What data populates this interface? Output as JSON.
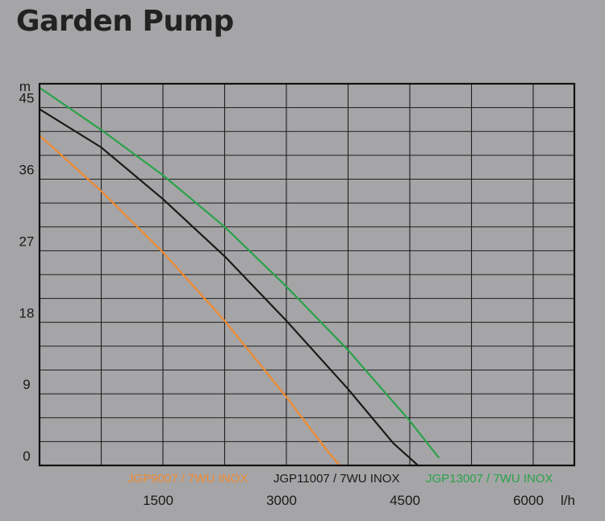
{
  "page": {
    "title": "Garden Pump"
  },
  "chart_data": {
    "type": "line",
    "title": "Garden Pump",
    "xlabel": "l/h",
    "ylabel": "m",
    "xlim": [
      0,
      6500
    ],
    "ylim": [
      0,
      48
    ],
    "x_major_ticks": [
      1500,
      3000,
      4500,
      6000
    ],
    "x_tick_labels": [
      "1500",
      "3000",
      "4500",
      "6000"
    ],
    "y_major_ticks": [
      0,
      9,
      18,
      27,
      36,
      45
    ],
    "y_tick_labels": [
      "0",
      "9",
      "18",
      "27",
      "36",
      "45"
    ],
    "x_grid_step": 750,
    "y_grid_step": 3,
    "grid": true,
    "legend_position": "bottom",
    "series": [
      {
        "name": "JGP9007 / 7WU INOX",
        "color": "#f08a30",
        "x": [
          0,
          750,
          1500,
          2250,
          3000,
          3500,
          3650
        ],
        "y": [
          41.5,
          34.5,
          26.8,
          18.2,
          8.6,
          1.8,
          0
        ]
      },
      {
        "name": "JGP11007 / 7WU INOX",
        "color": "#1a1a1a",
        "x": [
          0,
          750,
          1500,
          2250,
          3000,
          3750,
          4300,
          4600
        ],
        "y": [
          44.8,
          40.0,
          33.5,
          26.3,
          18.2,
          9.6,
          2.8,
          0
        ]
      },
      {
        "name": "JGP13007 / 7WU INOX",
        "color": "#2aa24a",
        "x": [
          0,
          750,
          1500,
          2250,
          3000,
          3750,
          4500,
          4850
        ],
        "y": [
          47.5,
          42.2,
          36.5,
          30.0,
          22.5,
          14.5,
          5.6,
          1.0
        ]
      }
    ]
  }
}
